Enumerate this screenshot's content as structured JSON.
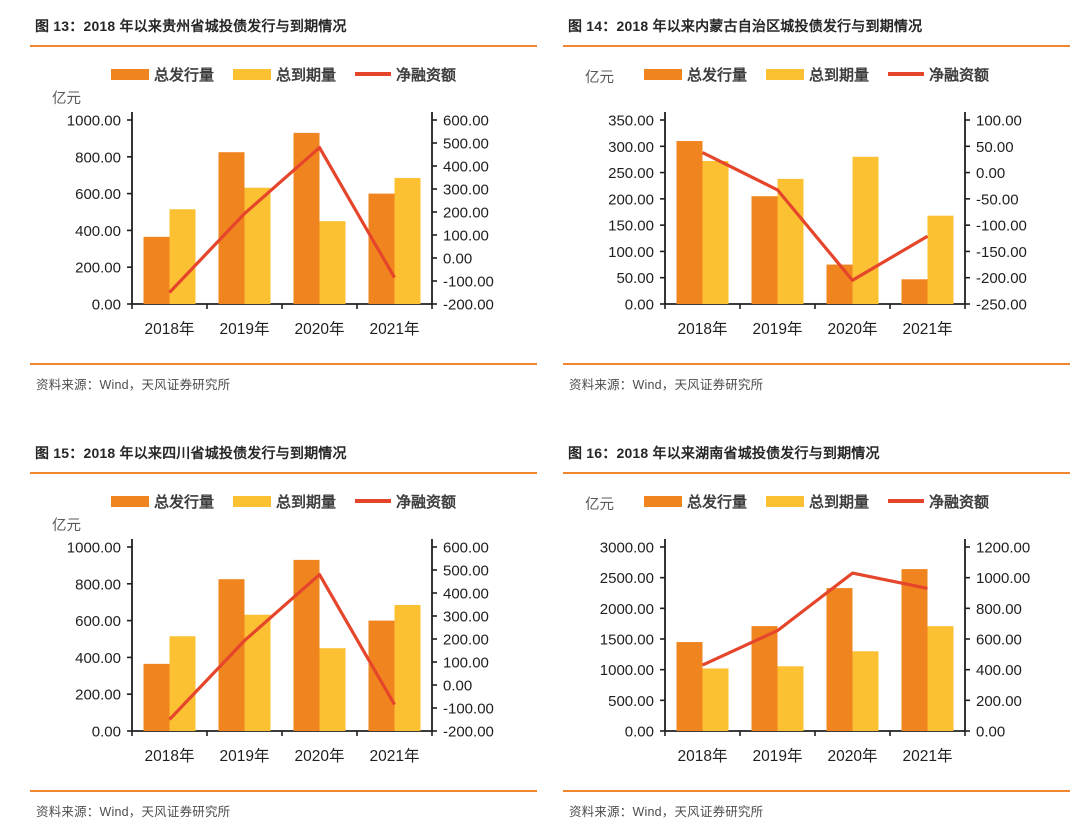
{
  "colors": {
    "issue_bar": "#F0851F",
    "maturity_bar": "#FCC033",
    "net_line": "#E5452B",
    "accent_rule": "#F0862D",
    "axis_text": "#1F1F1F",
    "background": "#FFFFFF"
  },
  "chart_data": [
    {
      "type": "bar+line",
      "title": "图 13：2018 年以来贵州省城投债发行与到期情况",
      "unit_label": "亿元",
      "categories": [
        "2018年",
        "2019年",
        "2020年",
        "2021年"
      ],
      "series": [
        {
          "name": "总发行量",
          "type": "bar",
          "axis": "left",
          "color": "#F0851F",
          "values": [
            365,
            825,
            930,
            600
          ]
        },
        {
          "name": "总到期量",
          "type": "bar",
          "axis": "left",
          "color": "#FCC033",
          "values": [
            515,
            632,
            450,
            685
          ]
        },
        {
          "name": "净融资额",
          "type": "line",
          "axis": "right",
          "color": "#E5452B",
          "values": [
            -150,
            193,
            480,
            -85
          ]
        }
      ],
      "left_axis": {
        "min": 0,
        "max": 1000,
        "step": 200
      },
      "right_axis": {
        "min": -200,
        "max": 600,
        "step": 100
      },
      "legend_position": "top",
      "grid": false,
      "source": "资料来源：Wind，天风证券研究所"
    },
    {
      "type": "bar+line",
      "title": "图 14：2018 年以来内蒙古自治区城投债发行与到期情况",
      "unit_label": "亿元",
      "categories": [
        "2018年",
        "2019年",
        "2020年",
        "2021年"
      ],
      "series": [
        {
          "name": "总发行量",
          "type": "bar",
          "axis": "left",
          "color": "#F0851F",
          "values": [
            310,
            205,
            75,
            47
          ]
        },
        {
          "name": "总到期量",
          "type": "bar",
          "axis": "left",
          "color": "#FCC033",
          "values": [
            272,
            238,
            280,
            168
          ]
        },
        {
          "name": "净融资额",
          "type": "line",
          "axis": "right",
          "color": "#E5452B",
          "values": [
            38,
            -33,
            -205,
            -121
          ]
        }
      ],
      "left_axis": {
        "min": 0,
        "max": 350,
        "step": 50
      },
      "right_axis": {
        "min": -250,
        "max": 100,
        "step": 50
      },
      "legend_position": "top",
      "grid": false,
      "source": "资料来源：Wind，天风证券研究所"
    },
    {
      "type": "bar+line",
      "title": "图 15：2018 年以来四川省城投债发行与到期情况",
      "unit_label": "亿元",
      "categories": [
        "2018年",
        "2019年",
        "2020年",
        "2021年"
      ],
      "series": [
        {
          "name": "总发行量",
          "type": "bar",
          "axis": "left",
          "color": "#F0851F",
          "values": [
            365,
            825,
            930,
            600
          ]
        },
        {
          "name": "总到期量",
          "type": "bar",
          "axis": "left",
          "color": "#FCC033",
          "values": [
            515,
            632,
            450,
            685
          ]
        },
        {
          "name": "净融资额",
          "type": "line",
          "axis": "right",
          "color": "#E5452B",
          "values": [
            -150,
            193,
            480,
            -85
          ]
        }
      ],
      "left_axis": {
        "min": 0,
        "max": 1000,
        "step": 200
      },
      "right_axis": {
        "min": -200,
        "max": 600,
        "step": 100
      },
      "legend_position": "top",
      "grid": false,
      "source": "资料来源：Wind，天风证券研究所"
    },
    {
      "type": "bar+line",
      "title": "图 16：2018 年以来湖南省城投债发行与到期情况",
      "unit_label": "亿元",
      "categories": [
        "2018年",
        "2019年",
        "2020年",
        "2021年"
      ],
      "series": [
        {
          "name": "总发行量",
          "type": "bar",
          "axis": "left",
          "color": "#F0851F",
          "values": [
            1450,
            1710,
            2330,
            2640
          ]
        },
        {
          "name": "总到期量",
          "type": "bar",
          "axis": "left",
          "color": "#FCC033",
          "values": [
            1020,
            1055,
            1300,
            1710
          ]
        },
        {
          "name": "净融资额",
          "type": "line",
          "axis": "right",
          "color": "#E5452B",
          "values": [
            430,
            655,
            1030,
            930
          ]
        }
      ],
      "left_axis": {
        "min": 0,
        "max": 3000,
        "step": 500
      },
      "right_axis": {
        "min": 0,
        "max": 1200,
        "step": 200
      },
      "legend_position": "top",
      "grid": false,
      "source": "资料来源：Wind，天风证券研究所"
    }
  ]
}
